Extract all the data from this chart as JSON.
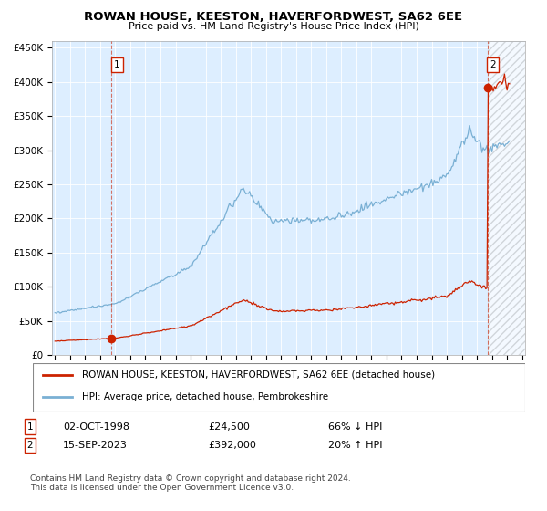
{
  "title": "ROWAN HOUSE, KEESTON, HAVERFORDWEST, SA62 6EE",
  "subtitle": "Price paid vs. HM Land Registry's House Price Index (HPI)",
  "hpi_color": "#7ab0d4",
  "price_color": "#cc2200",
  "bg_color": "#ddeeff",
  "ylim": [
    0,
    460000
  ],
  "xlim_start": 1994.8,
  "xlim_end": 2026.2,
  "yticks": [
    0,
    50000,
    100000,
    150000,
    200000,
    250000,
    300000,
    350000,
    400000,
    450000
  ],
  "ytick_labels": [
    "£0",
    "£50K",
    "£100K",
    "£150K",
    "£200K",
    "£250K",
    "£300K",
    "£350K",
    "£400K",
    "£450K"
  ],
  "xticks": [
    1995,
    1996,
    1997,
    1998,
    1999,
    2000,
    2001,
    2002,
    2003,
    2004,
    2005,
    2006,
    2007,
    2008,
    2009,
    2010,
    2011,
    2012,
    2013,
    2014,
    2015,
    2016,
    2017,
    2018,
    2019,
    2020,
    2021,
    2022,
    2023,
    2024,
    2025,
    2026
  ],
  "sale1_x": 1998.75,
  "sale1_y": 24500,
  "sale2_x": 2023.71,
  "sale2_y": 392000,
  "legend_label1": "ROWAN HOUSE, KEESTON, HAVERFORDWEST, SA62 6EE (detached house)",
  "legend_label2": "HPI: Average price, detached house, Pembrokeshire",
  "info1_date": "02-OCT-1998",
  "info1_price": "£24,500",
  "info1_hpi": "66% ↓ HPI",
  "info2_date": "15-SEP-2023",
  "info2_price": "£392,000",
  "info2_hpi": "20% ↑ HPI",
  "footer": "Contains HM Land Registry data © Crown copyright and database right 2024.\nThis data is licensed under the Open Government Licence v3.0."
}
